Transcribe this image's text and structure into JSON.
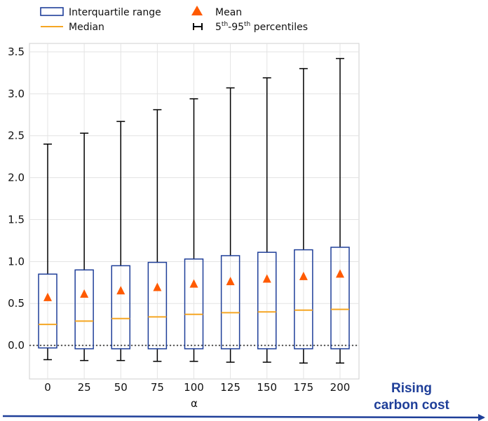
{
  "chart_data": {
    "type": "box",
    "categories": [
      "0",
      "25",
      "50",
      "75",
      "100",
      "125",
      "150",
      "175",
      "200"
    ],
    "xlabel": "α",
    "ylabel": "",
    "ylim": [
      -0.4,
      3.6
    ],
    "yticks": [
      "0.0",
      "0.5",
      "1.0",
      "1.5",
      "2.0",
      "2.5",
      "3.0",
      "3.5"
    ],
    "grid": true,
    "legend_position": "top",
    "legend": {
      "iqr": "Interquartile range",
      "median": "Median",
      "mean": "Mean",
      "percentiles_prefix": "5",
      "percentiles_sup1": "th",
      "percentiles_mid": "-95",
      "percentiles_sup2": "th",
      "percentiles_suffix": " percentiles"
    },
    "boxes": [
      {
        "alpha": 0,
        "p5": -0.17,
        "q1": -0.03,
        "median": 0.25,
        "q3": 0.85,
        "p95": 2.4,
        "mean": 0.57
      },
      {
        "alpha": 25,
        "p5": -0.18,
        "q1": -0.04,
        "median": 0.29,
        "q3": 0.9,
        "p95": 2.53,
        "mean": 0.61
      },
      {
        "alpha": 50,
        "p5": -0.18,
        "q1": -0.04,
        "median": 0.32,
        "q3": 0.95,
        "p95": 2.67,
        "mean": 0.65
      },
      {
        "alpha": 75,
        "p5": -0.19,
        "q1": -0.04,
        "median": 0.34,
        "q3": 0.99,
        "p95": 2.81,
        "mean": 0.69
      },
      {
        "alpha": 100,
        "p5": -0.19,
        "q1": -0.04,
        "median": 0.37,
        "q3": 1.03,
        "p95": 2.94,
        "mean": 0.73
      },
      {
        "alpha": 125,
        "p5": -0.2,
        "q1": -0.04,
        "median": 0.39,
        "q3": 1.07,
        "p95": 3.07,
        "mean": 0.76
      },
      {
        "alpha": 150,
        "p5": -0.2,
        "q1": -0.04,
        "median": 0.4,
        "q3": 1.11,
        "p95": 3.19,
        "mean": 0.79
      },
      {
        "alpha": 175,
        "p5": -0.21,
        "q1": -0.04,
        "median": 0.42,
        "q3": 1.14,
        "p95": 3.3,
        "mean": 0.82
      },
      {
        "alpha": 200,
        "p5": -0.21,
        "q1": -0.04,
        "median": 0.43,
        "q3": 1.17,
        "p95": 3.42,
        "mean": 0.85
      }
    ],
    "reference_line": 0.0,
    "annotation": {
      "line1": "Rising",
      "line2": "carbon cost"
    },
    "colors": {
      "box": "#1f3f99",
      "median": "#f5a623",
      "mean": "#ff5a00",
      "whisker": "#000000",
      "grid": "#e3e3e3",
      "annotation": "#1f3f99"
    }
  }
}
